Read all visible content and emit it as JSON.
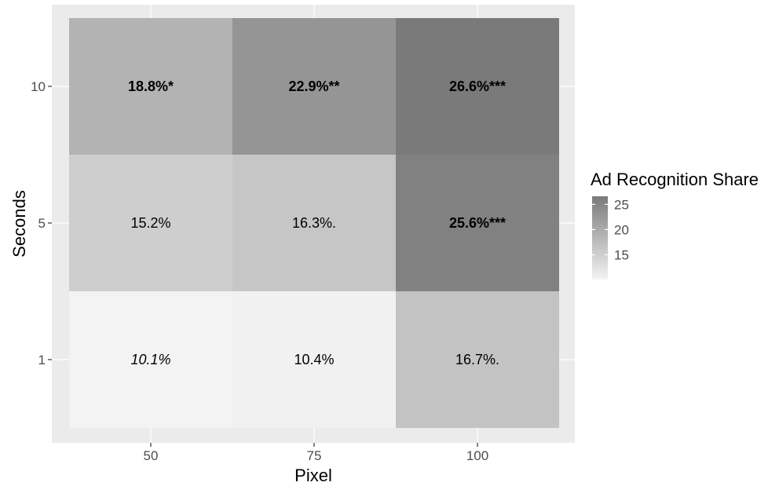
{
  "chart_data": {
    "type": "heatmap",
    "xlabel": "Pixel",
    "ylabel": "Seconds",
    "x_categories": [
      "50",
      "75",
      "100"
    ],
    "y_categories": [
      "1",
      "5",
      "10"
    ],
    "cells": [
      {
        "x": "50",
        "y": "10",
        "value": 18.8,
        "label": "18.8%*",
        "style": "bold"
      },
      {
        "x": "75",
        "y": "10",
        "value": 22.9,
        "label": "22.9%**",
        "style": "bold"
      },
      {
        "x": "100",
        "y": "10",
        "value": 26.6,
        "label": "26.6%***",
        "style": "bold"
      },
      {
        "x": "50",
        "y": "5",
        "value": 15.2,
        "label": "15.2%",
        "style": "normal"
      },
      {
        "x": "75",
        "y": "5",
        "value": 16.3,
        "label": "16.3%.",
        "style": "normal"
      },
      {
        "x": "100",
        "y": "5",
        "value": 25.6,
        "label": "25.6%***",
        "style": "bold"
      },
      {
        "x": "50",
        "y": "1",
        "value": 10.1,
        "label": "10.1%",
        "style": "italic"
      },
      {
        "x": "75",
        "y": "1",
        "value": 10.4,
        "label": "10.4%",
        "style": "normal"
      },
      {
        "x": "100",
        "y": "1",
        "value": 16.7,
        "label": "16.7%.",
        "style": "normal"
      }
    ],
    "legend": {
      "title": "Ad Recognition Share",
      "ticks": [
        15,
        20,
        25
      ],
      "range": [
        10.1,
        26.6
      ],
      "low_color": "#f3f3f3",
      "high_color": "#7a7a7a",
      "placement": "right"
    },
    "panel_background": "#ebebeb",
    "grid": true
  }
}
